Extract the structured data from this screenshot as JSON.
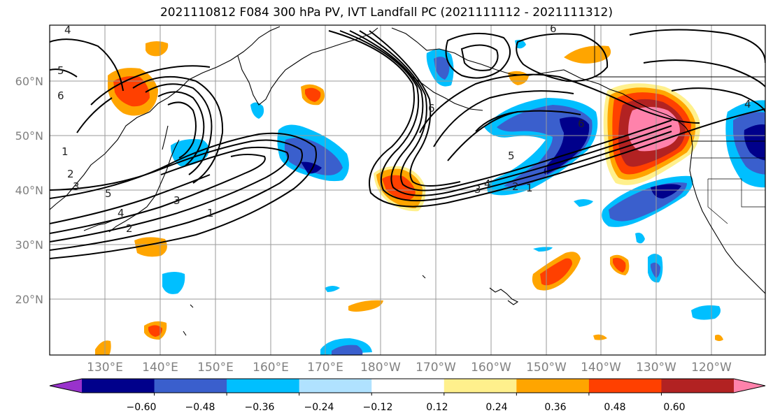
{
  "title": "2021110812 F084 300 hPa PV, IVT Landfall PC (2021111112 - 2021111312)",
  "lat_labels": [
    "60°N",
    "50°N",
    "40°N",
    "30°N",
    "20°N"
  ],
  "lon_labels": [
    "130°E",
    "140°E",
    "150°E",
    "160°E",
    "170°E",
    "180°W",
    "170°W",
    "160°W",
    "150°W",
    "140°W",
    "130°W",
    "120°W"
  ],
  "colorbar": {
    "colors": [
      "#9932cc",
      "#00008b",
      "#3a5fcd",
      "#00bfff",
      "#b0e2ff",
      "#ffffff",
      "#fff08c",
      "#ffa500",
      "#ff4000",
      "#b22222",
      "#ff82ab"
    ],
    "tick_labels": [
      "−0.60",
      "−0.48",
      "−0.36",
      "−0.24",
      "−0.12",
      "0.12",
      "0.24",
      "0.36",
      "0.48",
      "0.60"
    ]
  },
  "contour_labels": [
    "4",
    "5",
    "6",
    "1",
    "2",
    "3",
    "5",
    "4",
    "2",
    "3",
    "1",
    "6",
    "5",
    "4",
    "3",
    "2",
    "1",
    "6",
    "6",
    "4"
  ]
}
